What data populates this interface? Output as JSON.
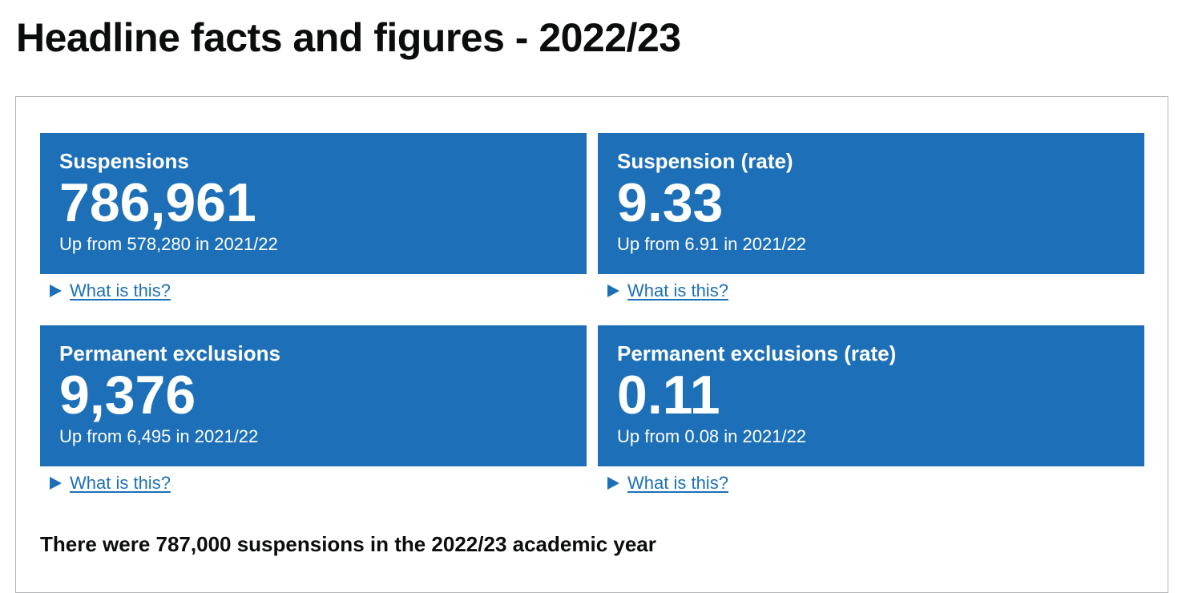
{
  "page": {
    "title": "Headline facts and figures - 2022/23"
  },
  "tiles": [
    {
      "title": "Suspensions",
      "value": "786,961",
      "trend": "Up from 578,280 in 2021/22",
      "details_label": "What is this?"
    },
    {
      "title": "Suspension (rate)",
      "value": "9.33",
      "trend": "Up from 6.91 in 2021/22",
      "details_label": "What is this?"
    },
    {
      "title": "Permanent exclusions",
      "value": "9,376",
      "trend": "Up from 6,495 in 2021/22",
      "details_label": "What is this?"
    },
    {
      "title": "Permanent exclusions (rate)",
      "value": "0.11",
      "trend": "Up from 0.08 in 2021/22",
      "details_label": "What is this?"
    }
  ],
  "summary": {
    "heading": "There were 787,000 suspensions in the 2022/23 academic year"
  },
  "colors": {
    "tile_background": "#1d70b8",
    "link": "#1d70b8",
    "text": "#0b0c0c",
    "panel_border": "#b1b4b6"
  },
  "icons": {
    "details_toggle": "triangle-right-icon"
  }
}
